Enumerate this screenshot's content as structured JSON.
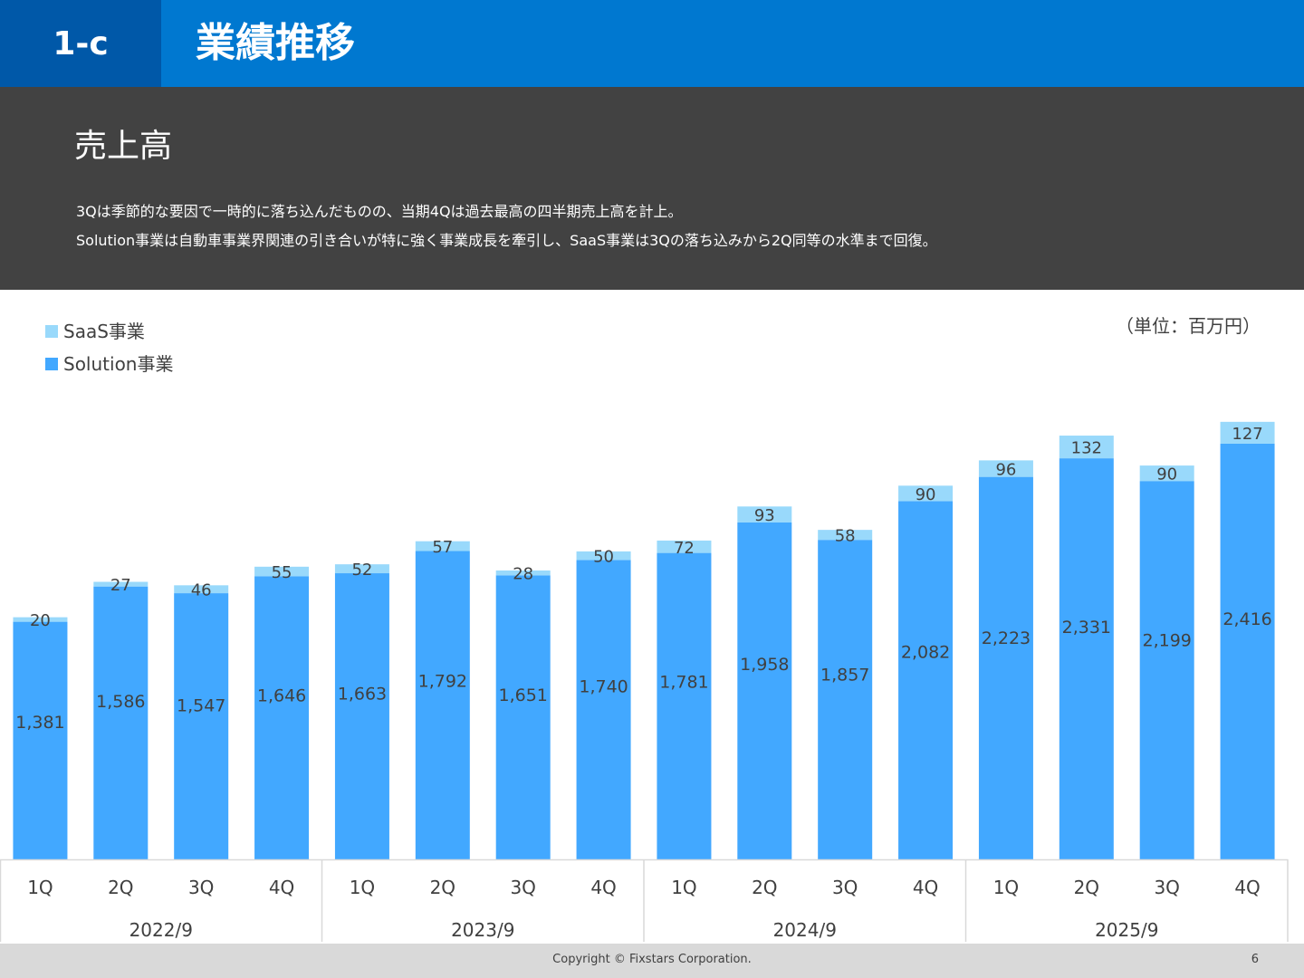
{
  "header": {
    "section": "1-c",
    "title": "業績推移"
  },
  "banner": {
    "title": "売上高",
    "line1": "3Qは季節的な要因で一時的に落ち込んだものの、当期4Qは過去最高の四半期売上高を計上。",
    "line2": "Solution事業は自動車事業界関連の引き合いが特に強く事業成長を牽引し、SaaS事業は3Qの落ち込みから2Q同等の水準まで回復。"
  },
  "unit_label": "（単位：百万円）",
  "footer": {
    "copyright": "Copyright © Fixstars Corporation.",
    "page": "6"
  },
  "chart_data": {
    "type": "bar",
    "stacked": true,
    "categories": [
      "1Q",
      "2Q",
      "3Q",
      "4Q",
      "1Q",
      "2Q",
      "3Q",
      "4Q",
      "1Q",
      "2Q",
      "3Q",
      "4Q",
      "1Q",
      "2Q",
      "3Q",
      "4Q"
    ],
    "groups": [
      {
        "label": "2022/9",
        "count": 4
      },
      {
        "label": "2023/9",
        "count": 4
      },
      {
        "label": "2024/9",
        "count": 4
      },
      {
        "label": "2025/9",
        "count": 4
      }
    ],
    "series": [
      {
        "name": "Solution事業",
        "color": "#42a8ff",
        "values": [
          1381,
          1586,
          1547,
          1646,
          1663,
          1792,
          1651,
          1740,
          1781,
          1958,
          1857,
          2082,
          2223,
          2331,
          2199,
          2416
        ]
      },
      {
        "name": "SaaS事業",
        "color": "#99d9fb",
        "values": [
          20,
          27,
          46,
          55,
          52,
          57,
          28,
          50,
          72,
          93,
          58,
          90,
          96,
          132,
          90,
          127
        ]
      }
    ],
    "legend_order": [
      "SaaS事業",
      "Solution事業"
    ],
    "legend_position": "top-left",
    "grid": false
  }
}
